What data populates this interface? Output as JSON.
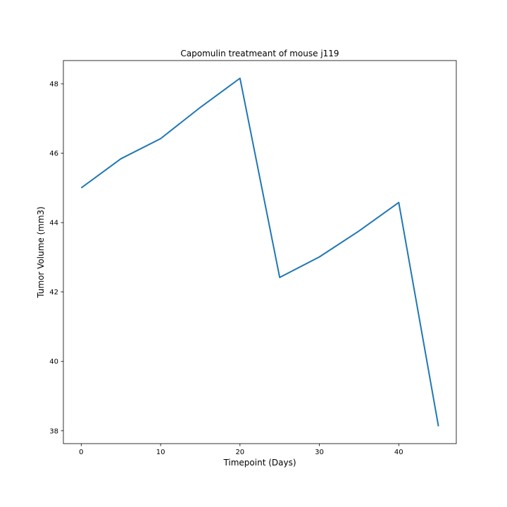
{
  "chart_data": {
    "type": "line",
    "title": "Capomulin treatmeant of mouse j119",
    "xlabel": "Timepoint (Days)",
    "ylabel": "Tumor Volume (mm3)",
    "x": [
      0,
      5,
      10,
      15,
      20,
      25,
      30,
      35,
      40,
      45
    ],
    "series": [
      {
        "values": [
          45.0,
          45.84,
          46.42,
          47.32,
          48.16,
          42.42,
          43.01,
          43.76,
          44.58,
          38.13
        ],
        "color": "#1f77b4"
      }
    ],
    "xlim": [
      -2.25,
      47.25
    ],
    "ylim": [
      37.63,
      48.67
    ],
    "xticks": [
      0,
      10,
      20,
      30,
      40
    ],
    "yticks": [
      38,
      40,
      42,
      44,
      46,
      48
    ],
    "grid": false,
    "legend": "none"
  }
}
